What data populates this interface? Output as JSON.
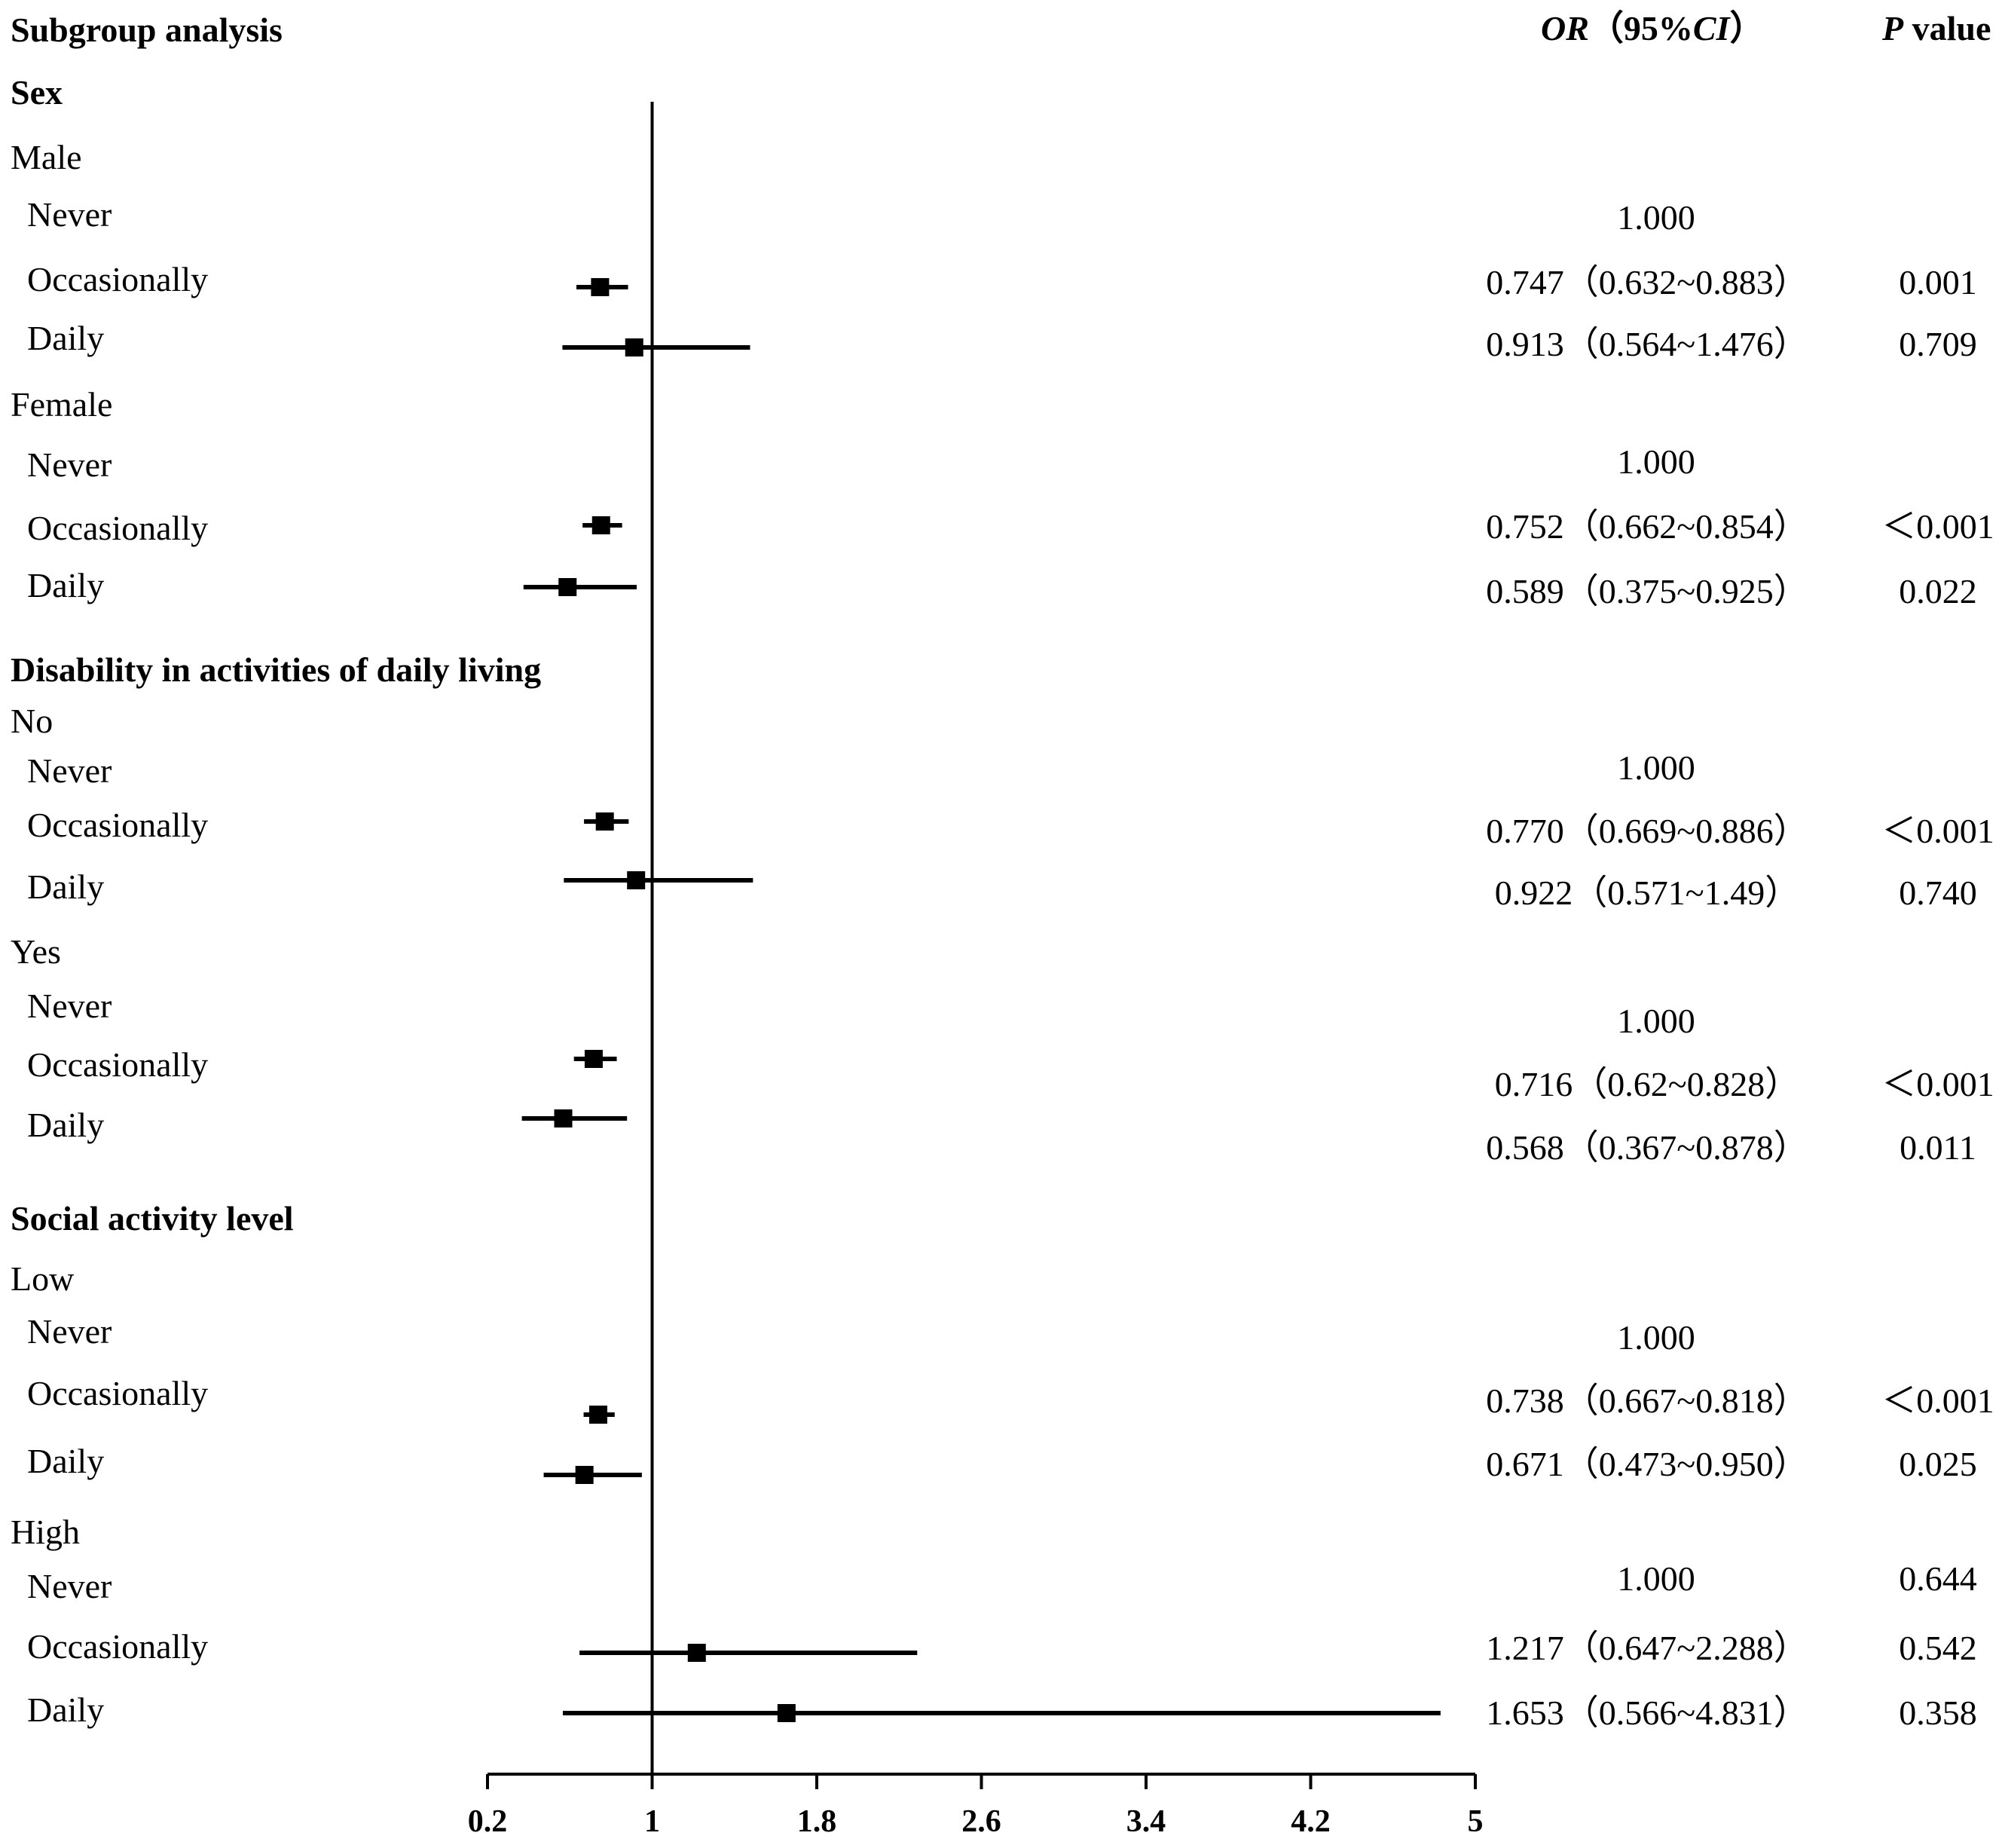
{
  "headers": {
    "subgroup": "Subgroup analysis",
    "or_italic": "OR",
    "or_rest": "（95%",
    "ci_italic": "CI",
    "ci_close": "）",
    "p_italic": "P",
    "p_rest": " value"
  },
  "sections": [
    "Sex",
    "Disability in activities of daily living",
    "Social activity level"
  ],
  "groups": [
    "Male",
    "Female",
    "No",
    "Yes",
    "Low",
    "High"
  ],
  "rows": [
    {
      "label": "Never",
      "or_text": "1.000",
      "p": ""
    },
    {
      "label": "Occasionally",
      "or_text": "0.747（0.632~0.883）",
      "p": "0.001"
    },
    {
      "label": "Daily",
      "or_text": "0.913（0.564~1.476）",
      "p": "0.709"
    },
    {
      "label": "Never",
      "or_text": "1.000",
      "p": ""
    },
    {
      "label": "Occasionally",
      "or_text": "0.752（0.662~0.854）",
      "p": "＜0.001"
    },
    {
      "label": "Daily",
      "or_text": "0.589（0.375~0.925）",
      "p": "0.022"
    },
    {
      "label": "Never",
      "or_text": "1.000",
      "p": ""
    },
    {
      "label": "Occasionally",
      "or_text": "0.770（0.669~0.886）",
      "p": "＜0.001"
    },
    {
      "label": "Daily",
      "or_text": "0.922（0.571~1.49）",
      "p": "0.740"
    },
    {
      "label": "Never",
      "or_text": "1.000",
      "p": ""
    },
    {
      "label": "Occasionally",
      "or_text": "0.716（0.62~0.828）",
      "p": "＜0.001"
    },
    {
      "label": "Daily",
      "or_text": "0.568（0.367~0.878）",
      "p": "0.011"
    },
    {
      "label": "Never",
      "or_text": "1.000",
      "p": ""
    },
    {
      "label": "Occasionally",
      "or_text": "0.738（0.667~0.818）",
      "p": "＜0.001"
    },
    {
      "label": "Daily",
      "or_text": "0.671（0.473~0.950）",
      "p": "0.025"
    },
    {
      "label": "Never",
      "or_text": "1.000",
      "p": "0.644"
    },
    {
      "label": "Occasionally",
      "or_text": "1.217（0.647~2.288）",
      "p": "0.542"
    },
    {
      "label": "Daily",
      "or_text": "1.653（0.566~4.831）",
      "p": "0.358"
    }
  ],
  "chart_data": {
    "type": "forest",
    "xlim": [
      0.2,
      5
    ],
    "xticks": [
      0.2,
      1,
      1.8,
      2.6,
      3.4,
      4.2,
      5
    ],
    "reference_line": 1,
    "points": [
      {
        "subgroup": "Male",
        "level": "Occasionally",
        "or": 0.747,
        "lo": 0.632,
        "hi": 0.883
      },
      {
        "subgroup": "Male",
        "level": "Daily",
        "or": 0.913,
        "lo": 0.564,
        "hi": 1.476
      },
      {
        "subgroup": "Female",
        "level": "Occasionally",
        "or": 0.752,
        "lo": 0.662,
        "hi": 0.854
      },
      {
        "subgroup": "Female",
        "level": "Daily",
        "or": 0.589,
        "lo": 0.375,
        "hi": 0.925
      },
      {
        "subgroup": "No",
        "level": "Occasionally",
        "or": 0.77,
        "lo": 0.669,
        "hi": 0.886
      },
      {
        "subgroup": "No",
        "level": "Daily",
        "or": 0.922,
        "lo": 0.571,
        "hi": 1.49
      },
      {
        "subgroup": "Yes",
        "level": "Occasionally",
        "or": 0.716,
        "lo": 0.62,
        "hi": 0.828
      },
      {
        "subgroup": "Yes",
        "level": "Daily",
        "or": 0.568,
        "lo": 0.367,
        "hi": 0.878
      },
      {
        "subgroup": "Low",
        "level": "Occasionally",
        "or": 0.738,
        "lo": 0.667,
        "hi": 0.818
      },
      {
        "subgroup": "Low",
        "level": "Daily",
        "or": 0.671,
        "lo": 0.473,
        "hi": 0.95
      },
      {
        "subgroup": "High",
        "level": "Occasionally",
        "or": 1.217,
        "lo": 0.647,
        "hi": 2.288
      },
      {
        "subgroup": "High",
        "level": "Daily",
        "or": 1.653,
        "lo": 0.566,
        "hi": 4.831
      }
    ]
  }
}
